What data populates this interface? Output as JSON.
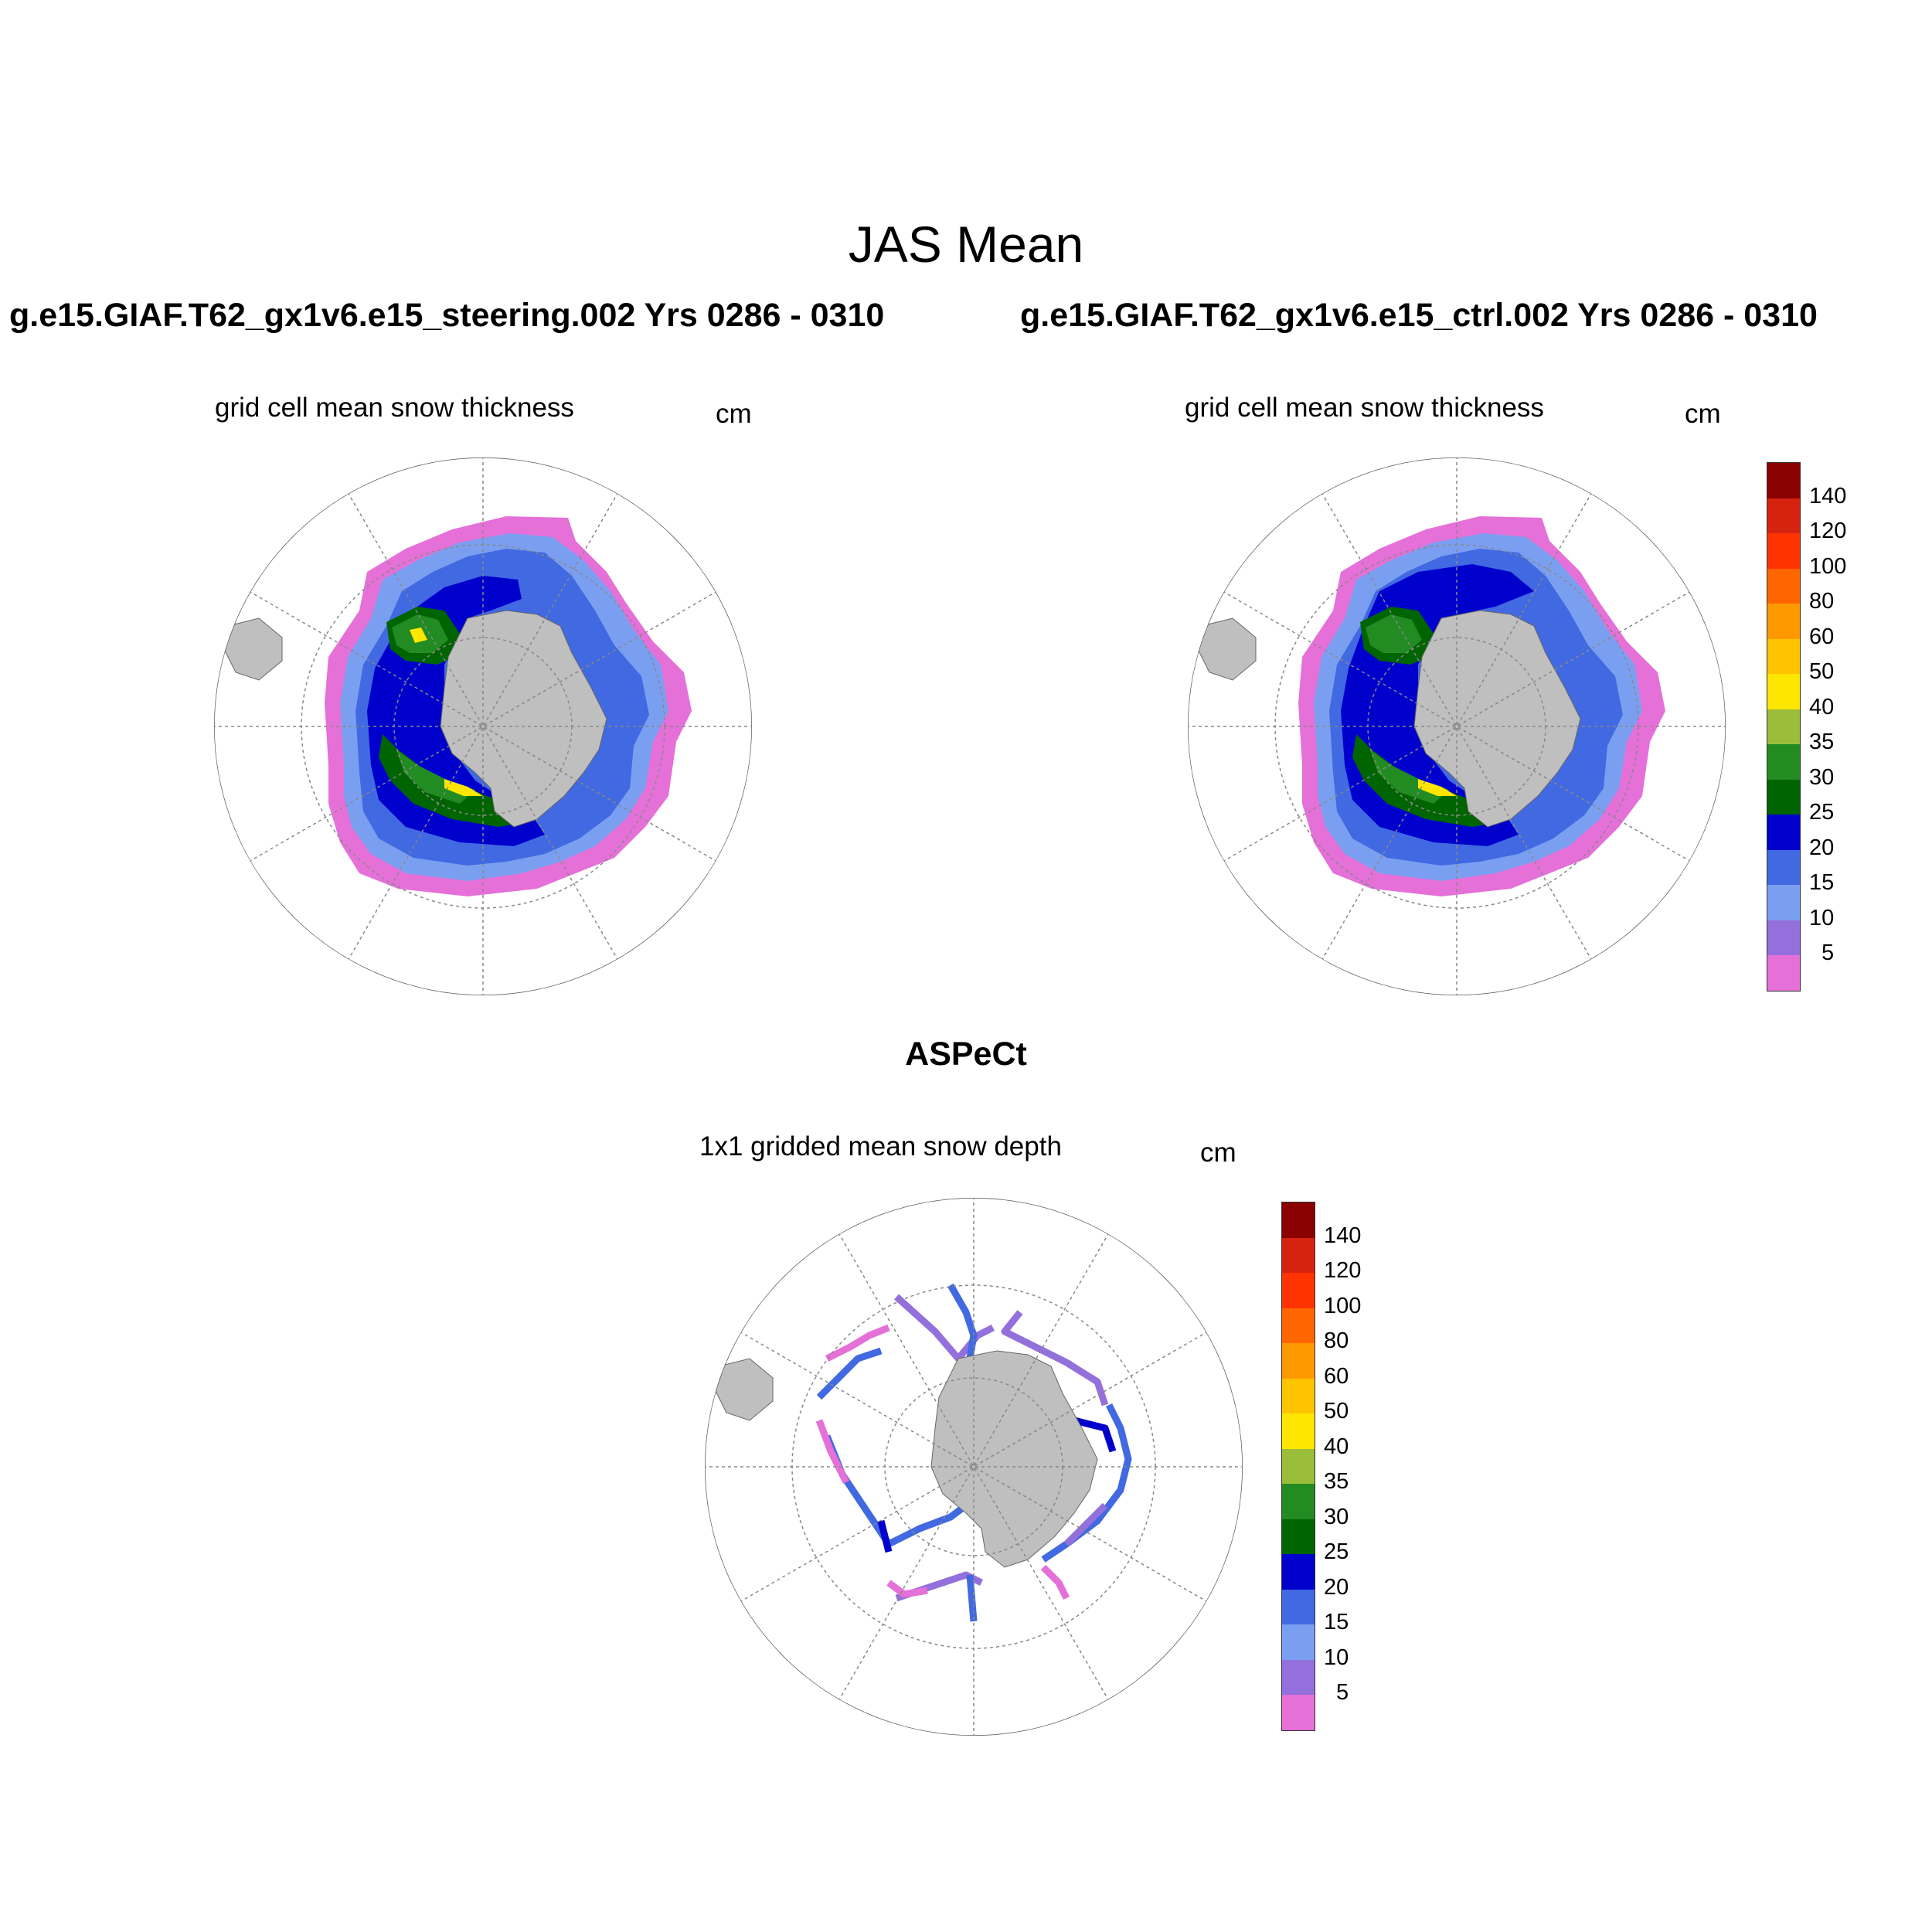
{
  "title": "JAS Mean",
  "panels": [
    {
      "id": "steering",
      "run_title": "g.e15.GIAF.T62_gx1v6.e15_steering.002  Yrs 0286 - 0310",
      "variable": "grid cell mean snow thickness",
      "units": "cm"
    },
    {
      "id": "ctrl",
      "run_title": "g.e15.GIAF.T62_gx1v6.e15_ctrl.002  Yrs 0286 - 0310",
      "variable": "grid cell mean snow thickness",
      "units": "cm"
    },
    {
      "id": "aspect",
      "run_title": "ASPeCt",
      "variable": "1x1 gridded mean snow depth",
      "units": "cm"
    }
  ],
  "colorbar": {
    "labels": [
      "140",
      "120",
      "100",
      "80",
      "60",
      "50",
      "40",
      "35",
      "30",
      "25",
      "20",
      "15",
      "10",
      "5"
    ],
    "colors": [
      "#8b0000",
      "#d6230f",
      "#ff3300",
      "#ff6600",
      "#ff9900",
      "#ffc400",
      "#ffe600",
      "#9abd3a",
      "#228b22",
      "#006400",
      "#0000cd",
      "#4169e1",
      "#7b9ff0",
      "#9370db",
      "#e570d8"
    ]
  },
  "map_colors": {
    "land": "#bfbfbf",
    "ocean": "#ffffff",
    "grid": "#888888"
  }
}
